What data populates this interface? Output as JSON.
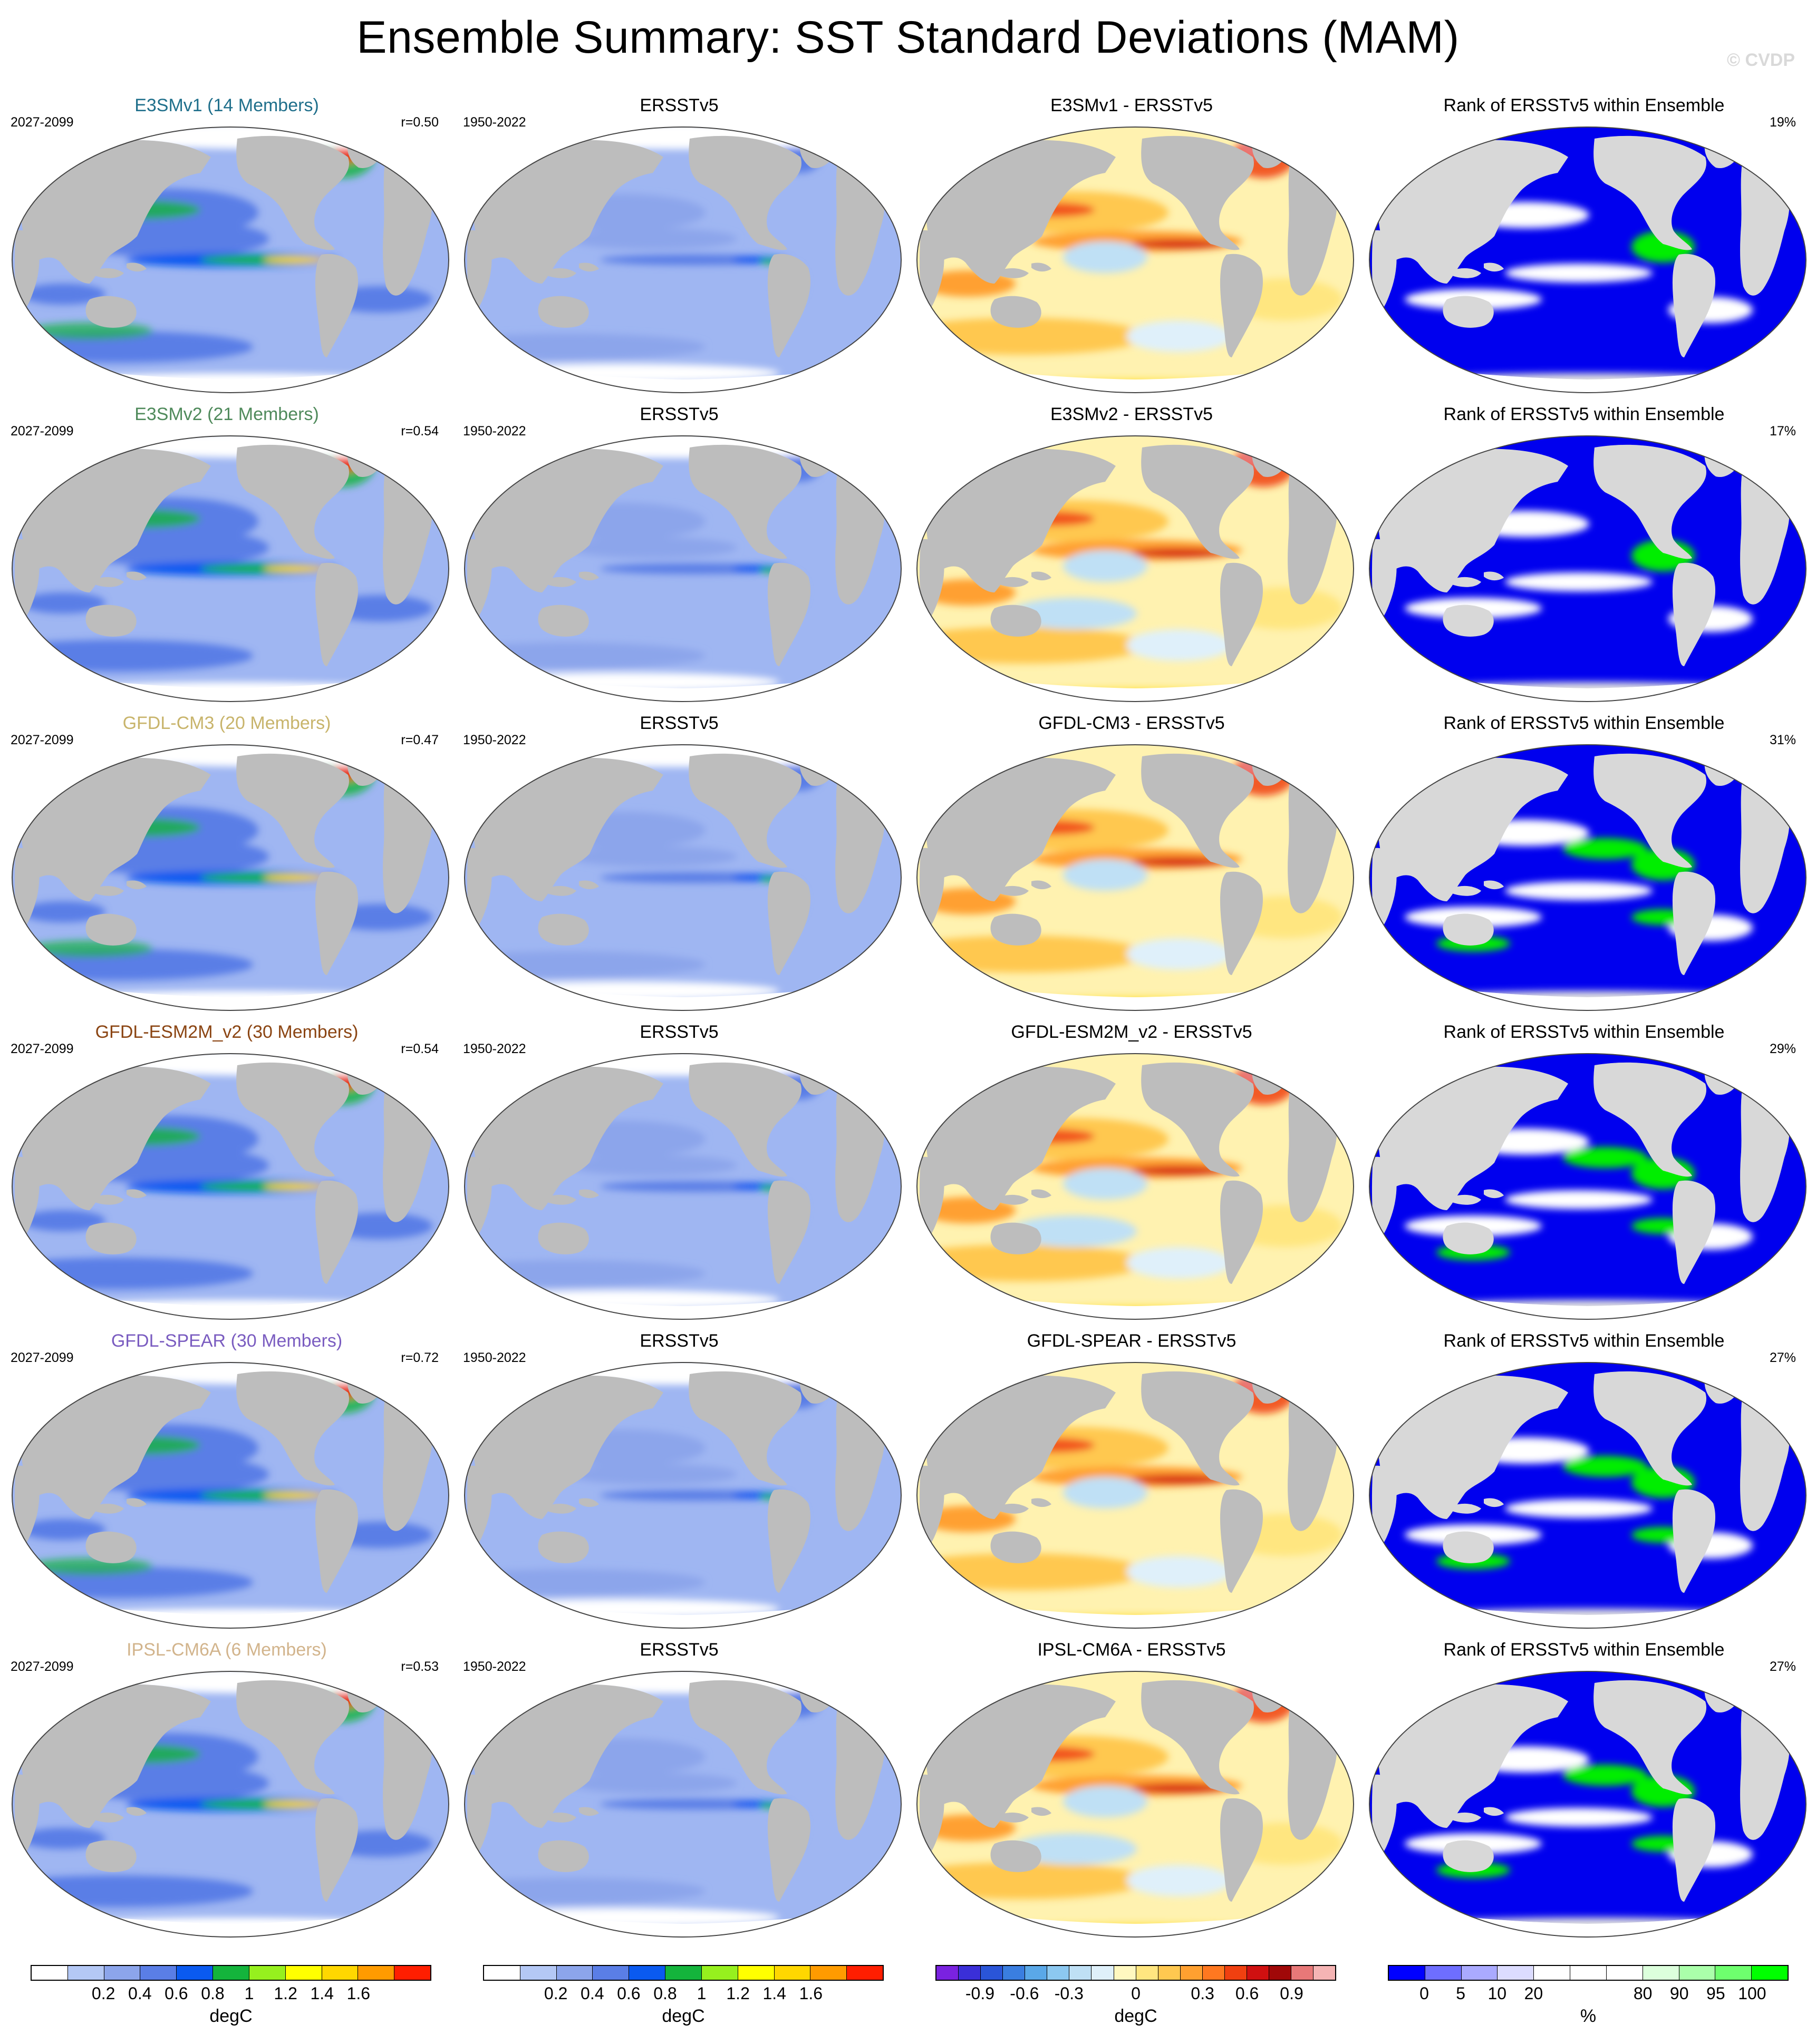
{
  "title": "Ensemble Summary: SST Standard Deviations (MAM)",
  "watermark": "© CVDP",
  "rows": [
    {
      "model": {
        "title": "E3SMv1 (14 Members)",
        "color": "#1f6f8b",
        "period": "2027-2099",
        "r": "r=0.50",
        "style": "m1"
      },
      "obs": {
        "title": "ERSSTv5",
        "period": "1950-2022"
      },
      "diff": {
        "title": "E3SMv1 - ERSSTv5",
        "style": "d1"
      },
      "rank": {
        "title": "Rank of ERSSTv5 within Ensemble",
        "pct": "19%",
        "style": "r1"
      }
    },
    {
      "model": {
        "title": "E3SMv2 (21 Members)",
        "color": "#4f8a5b",
        "period": "2027-2099",
        "r": "r=0.54",
        "style": "m2"
      },
      "obs": {
        "title": "ERSSTv5",
        "period": "1950-2022"
      },
      "diff": {
        "title": "E3SMv2 - ERSSTv5",
        "style": "d2"
      },
      "rank": {
        "title": "Rank of ERSSTv5 within Ensemble",
        "pct": "17%",
        "style": "r2"
      }
    },
    {
      "model": {
        "title": "GFDL-CM3 (20 Members)",
        "color": "#c8b46b",
        "period": "2027-2099",
        "r": "r=0.47",
        "style": "m3"
      },
      "obs": {
        "title": "ERSSTv5",
        "period": "1950-2022"
      },
      "diff": {
        "title": "GFDL-CM3 - ERSSTv5",
        "style": "d3"
      },
      "rank": {
        "title": "Rank of ERSSTv5 within Ensemble",
        "pct": "31%",
        "style": "r3"
      }
    },
    {
      "model": {
        "title": "GFDL-ESM2M_v2 (30 Members)",
        "color": "#8b4513",
        "period": "2027-2099",
        "r": "r=0.54",
        "style": "m4"
      },
      "obs": {
        "title": "ERSSTv5",
        "period": "1950-2022"
      },
      "diff": {
        "title": "GFDL-ESM2M_v2 - ERSSTv5",
        "style": "d4"
      },
      "rank": {
        "title": "Rank of ERSSTv5 within Ensemble",
        "pct": "29%",
        "style": "r4"
      }
    },
    {
      "model": {
        "title": "GFDL-SPEAR (30 Members)",
        "color": "#7a5cc0",
        "period": "2027-2099",
        "r": "r=0.72",
        "style": "m5"
      },
      "obs": {
        "title": "ERSSTv5",
        "period": "1950-2022"
      },
      "diff": {
        "title": "GFDL-SPEAR - ERSSTv5",
        "style": "d5"
      },
      "rank": {
        "title": "Rank of ERSSTv5 within Ensemble",
        "pct": "27%",
        "style": "r5"
      }
    },
    {
      "model": {
        "title": "IPSL-CM6A (6 Members)",
        "color": "#d2b48c",
        "period": "2027-2099",
        "r": "r=0.53",
        "style": "m6"
      },
      "obs": {
        "title": "ERSSTv5",
        "period": "1950-2022"
      },
      "diff": {
        "title": "IPSL-CM6A - ERSSTv5",
        "style": "d6"
      },
      "rank": {
        "title": "Rank of ERSSTv5 within Ensemble",
        "pct": "27%",
        "style": "r6"
      }
    }
  ],
  "colorbars": [
    {
      "name": "model-colorbar",
      "colors": [
        "#ffffff",
        "#b4c8f5",
        "#8ca5eb",
        "#5a7ee6",
        "#0a5af0",
        "#14b43c",
        "#96f01e",
        "#ffff00",
        "#ffd700",
        "#ff9b00",
        "#ff1e00"
      ],
      "labels": [
        "0.2",
        "0.4",
        "0.6",
        "0.8",
        "1",
        "1.2",
        "1.4",
        "1.6"
      ],
      "units": "degC"
    },
    {
      "name": "obs-colorbar",
      "colors": [
        "#ffffff",
        "#b4c8f5",
        "#8ca5eb",
        "#5a7ee6",
        "#0a5af0",
        "#14b43c",
        "#96f01e",
        "#ffff00",
        "#ffd700",
        "#ff9b00",
        "#ff1e00"
      ],
      "labels": [
        "0.2",
        "0.4",
        "0.6",
        "0.8",
        "1",
        "1.2",
        "1.4",
        "1.6"
      ],
      "units": "degC"
    },
    {
      "name": "diff-colorbar",
      "colors": [
        "#7a22e0",
        "#3a2fd8",
        "#2a55d8",
        "#3a7ee0",
        "#5aa8e8",
        "#8cc8f0",
        "#bfe0f5",
        "#dff0fa",
        "#fff8c0",
        "#ffe680",
        "#ffc850",
        "#ffa030",
        "#ff7820",
        "#f04010",
        "#d01010",
        "#a00808",
        "#e87878",
        "#f5b4b4"
      ],
      "labels": [
        "-0.9",
        "-0.6",
        "-0.3",
        "0",
        "0.3",
        "0.6",
        "0.9"
      ],
      "units": "degC"
    },
    {
      "name": "rank-colorbar",
      "colors": [
        "#0000ff",
        "#6e6eff",
        "#aaaaff",
        "#dcdcff",
        "#ffffff",
        "#ffffff",
        "#ffffff",
        "#dcffdc",
        "#aaffaa",
        "#6eff6e",
        "#00ff00"
      ],
      "labels": [
        "0",
        "5",
        "10",
        "20",
        "80",
        "90",
        "95",
        "100"
      ],
      "units": "%"
    }
  ]
}
